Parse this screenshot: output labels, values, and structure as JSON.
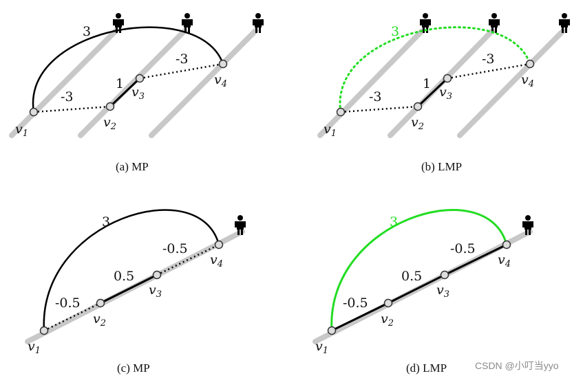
{
  "panels": [
    {
      "caption": "(a) MP",
      "edges": [
        {
          "label": "3",
          "color": "#000000",
          "style": "solid"
        },
        {
          "label": "-3",
          "color": "#000000",
          "style": "dotted"
        },
        {
          "label": "1",
          "color": "#000000",
          "style": "solid"
        },
        {
          "label": "-3",
          "color": "#000000",
          "style": "dotted"
        }
      ],
      "nodes": [
        "v1",
        "v2",
        "v3",
        "v4"
      ]
    },
    {
      "caption": "(b) LMP",
      "edges": [
        {
          "label": "3",
          "color": "#22dd22",
          "style": "dotted"
        },
        {
          "label": "-3",
          "color": "#000000",
          "style": "dotted"
        },
        {
          "label": "1",
          "color": "#000000",
          "style": "solid"
        },
        {
          "label": "-3",
          "color": "#000000",
          "style": "dotted"
        }
      ],
      "nodes": [
        "v1",
        "v2",
        "v3",
        "v4"
      ]
    },
    {
      "caption": "(c) MP",
      "edges": [
        {
          "label": "3",
          "color": "#000000",
          "style": "solid"
        },
        {
          "label": "-0.5",
          "color": "#000000",
          "style": "dotted"
        },
        {
          "label": "0.5",
          "color": "#000000",
          "style": "solid"
        },
        {
          "label": "-0.5",
          "color": "#000000",
          "style": "dotted"
        }
      ],
      "nodes": [
        "v1",
        "v2",
        "v3",
        "v4"
      ]
    },
    {
      "caption": "(d) LMP",
      "edges": [
        {
          "label": "3",
          "color": "#22dd22",
          "style": "solid"
        },
        {
          "label": "-0.5",
          "color": "#000000",
          "style": "solid"
        },
        {
          "label": "0.5",
          "color": "#000000",
          "style": "solid"
        },
        {
          "label": "-0.5",
          "color": "#000000",
          "style": "solid"
        }
      ],
      "nodes": [
        "v1",
        "v2",
        "v3",
        "v4"
      ]
    }
  ],
  "colors": {
    "track": "#c8c8c8",
    "highlight": "#22dd22",
    "edge": "#000000"
  },
  "icons": {
    "person": "person-icon"
  },
  "watermark": "CSDN @小叮当yyo"
}
